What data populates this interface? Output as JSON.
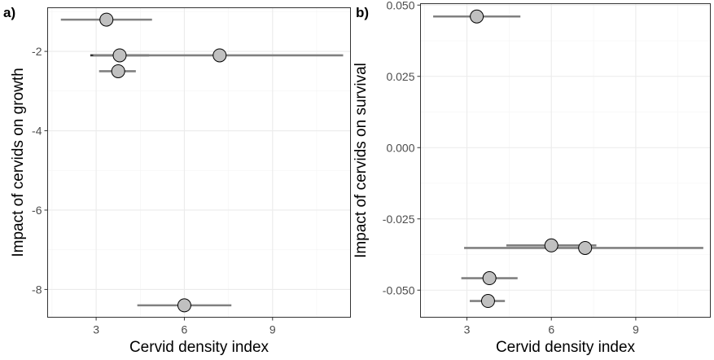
{
  "chart_data": [
    {
      "type": "scatter",
      "panel_tag": "a)",
      "title": "",
      "xlabel": "Cervid density index",
      "ylabel": "Impact of cervids on growth",
      "xlim": [
        1.35,
        11.65
      ],
      "ylim": [
        -8.7,
        -0.9
      ],
      "x_ticks": [
        3,
        6,
        9
      ],
      "x_tick_labels": [
        "3",
        "6",
        "9"
      ],
      "y_ticks": [
        -2,
        -4,
        -6,
        -8
      ],
      "y_tick_labels": [
        "-2",
        "-4",
        "-6",
        "-8"
      ],
      "grid": true,
      "points": [
        {
          "x": 3.35,
          "y": -1.2,
          "xmin": 1.8,
          "xmax": 4.9,
          "bar_color": "#808080"
        },
        {
          "x": 3.8,
          "y": -2.1,
          "xmin": 2.8,
          "xmax": 4.8,
          "bar_color": "#333333"
        },
        {
          "x": 7.2,
          "y": -2.1,
          "xmin": 2.9,
          "xmax": 11.4,
          "bar_color": "#808080"
        },
        {
          "x": 3.75,
          "y": -2.5,
          "xmin": 3.1,
          "xmax": 4.35,
          "bar_color": "#808080"
        },
        {
          "x": 6.0,
          "y": -8.4,
          "xmin": 4.4,
          "xmax": 7.6,
          "bar_color": "#808080"
        }
      ]
    },
    {
      "type": "scatter",
      "panel_tag": "b)",
      "title": "",
      "xlabel": "Cervid density index",
      "ylabel": "Impact of cervids on survival",
      "xlim": [
        1.35,
        11.65
      ],
      "ylim": [
        -0.0595,
        0.0505
      ],
      "x_ticks": [
        3,
        6,
        9
      ],
      "x_tick_labels": [
        "3",
        "6",
        "9"
      ],
      "y_ticks": [
        0.05,
        0.025,
        0.0,
        -0.025,
        -0.05
      ],
      "y_tick_labels": [
        "0.050",
        "0.025",
        "0.000",
        "-0.025",
        "-0.050"
      ],
      "grid": true,
      "points": [
        {
          "x": 3.35,
          "y": 0.046,
          "xmin": 1.8,
          "xmax": 4.9,
          "bar_color": "#808080"
        },
        {
          "x": 6.0,
          "y": -0.0343,
          "xmin": 4.4,
          "xmax": 7.6,
          "bar_color": "#808080"
        },
        {
          "x": 7.2,
          "y": -0.0352,
          "xmin": 2.9,
          "xmax": 11.4,
          "bar_color": "#808080"
        },
        {
          "x": 3.8,
          "y": -0.0458,
          "xmin": 2.8,
          "xmax": 4.8,
          "bar_color": "#808080"
        },
        {
          "x": 3.75,
          "y": -0.0538,
          "xmin": 3.1,
          "xmax": 4.35,
          "bar_color": "#808080"
        }
      ]
    }
  ]
}
